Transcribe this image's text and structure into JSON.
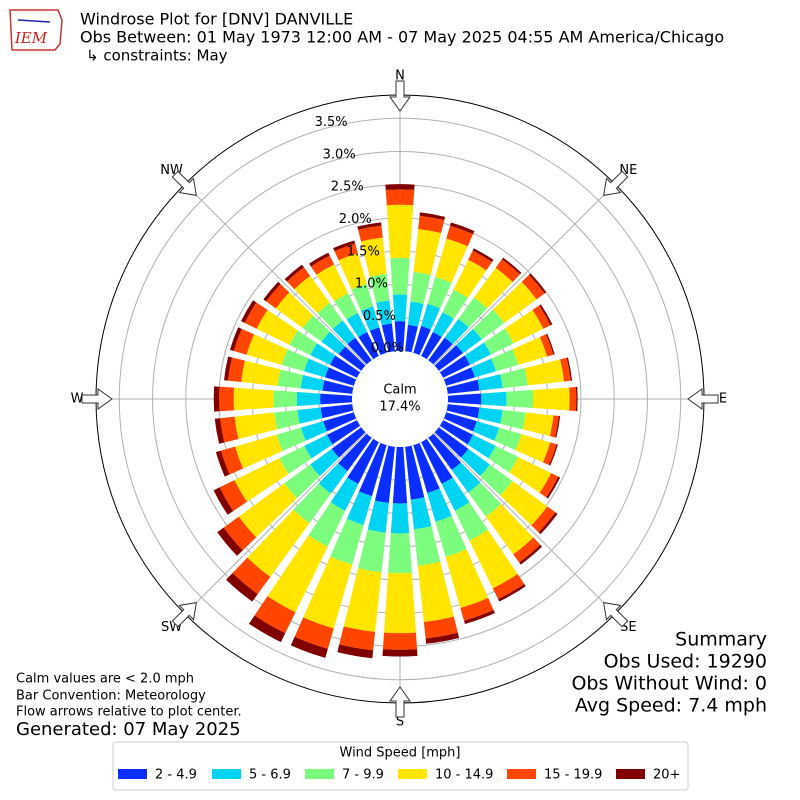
{
  "header": {
    "title": "Windrose Plot for [DNV] DANVILLE",
    "subtitle": "Obs Between: 01 May 1973 12:00 AM - 07 May 2025 04:55 AM America/Chicago",
    "constraints": "↳ constraints: May",
    "logo_text": "IEM"
  },
  "chart_data": {
    "type": "windrose",
    "x": [
      0,
      10,
      20,
      30,
      40,
      50,
      60,
      70,
      80,
      90,
      100,
      110,
      120,
      130,
      140,
      150,
      160,
      170,
      180,
      190,
      200,
      210,
      220,
      230,
      240,
      250,
      260,
      270,
      280,
      290,
      300,
      310,
      320,
      330,
      340,
      350
    ],
    "xticks": [
      {
        "value": 0,
        "label": "N"
      },
      {
        "value": 45,
        "label": "NE"
      },
      {
        "value": 90,
        "label": "E"
      },
      {
        "value": 135,
        "label": "SE"
      },
      {
        "value": 180,
        "label": "S"
      },
      {
        "value": 225,
        "label": "SW"
      },
      {
        "value": 270,
        "label": "W"
      },
      {
        "value": 315,
        "label": "NW"
      }
    ],
    "ylim": [
      0,
      3.85
    ],
    "yticks": [
      {
        "value": 0,
        "label": "0.0%"
      },
      {
        "value": 0.5,
        "label": "0.5%"
      },
      {
        "value": 1,
        "label": "1.0%"
      },
      {
        "value": 1.5,
        "label": "1.5%"
      },
      {
        "value": 2,
        "label": "2.0%"
      },
      {
        "value": 2.5,
        "label": "2.5%"
      },
      {
        "value": 3,
        "label": "3.0%"
      },
      {
        "value": 3.5,
        "label": "3.5%"
      }
    ],
    "grid": true,
    "legend_title": "Wind Speed [mph]",
    "series": [
      {
        "name": "2 - 4.9",
        "color": "#0a2eff",
        "values": [
          0.45,
          0.4,
          0.42,
          0.4,
          0.42,
          0.45,
          0.45,
          0.45,
          0.48,
          0.5,
          0.48,
          0.48,
          0.5,
          0.55,
          0.6,
          0.7,
          0.75,
          0.8,
          0.85,
          0.85,
          0.8,
          0.7,
          0.62,
          0.55,
          0.5,
          0.48,
          0.48,
          0.48,
          0.45,
          0.45,
          0.45,
          0.42,
          0.42,
          0.4,
          0.4,
          0.42
        ]
      },
      {
        "name": "5 - 6.9",
        "color": "#00d4f2",
        "values": [
          0.4,
          0.35,
          0.35,
          0.33,
          0.35,
          0.35,
          0.35,
          0.33,
          0.35,
          0.38,
          0.35,
          0.35,
          0.38,
          0.4,
          0.42,
          0.45,
          0.45,
          0.45,
          0.45,
          0.45,
          0.45,
          0.45,
          0.42,
          0.4,
          0.38,
          0.35,
          0.35,
          0.35,
          0.33,
          0.33,
          0.33,
          0.32,
          0.32,
          0.32,
          0.33,
          0.35
        ]
      },
      {
        "name": "7 - 9.9",
        "color": "#7cfc7c",
        "values": [
          0.55,
          0.45,
          0.42,
          0.38,
          0.4,
          0.42,
          0.38,
          0.35,
          0.38,
          0.4,
          0.35,
          0.35,
          0.38,
          0.42,
          0.45,
          0.5,
          0.55,
          0.55,
          0.6,
          0.6,
          0.62,
          0.6,
          0.55,
          0.48,
          0.42,
          0.38,
          0.35,
          0.35,
          0.35,
          0.35,
          0.35,
          0.35,
          0.33,
          0.33,
          0.35,
          0.4
        ]
      },
      {
        "name": "10 - 14.9",
        "color": "#ffe500",
        "values": [
          0.8,
          0.65,
          0.6,
          0.5,
          0.55,
          0.6,
          0.5,
          0.45,
          0.55,
          0.55,
          0.42,
          0.45,
          0.55,
          0.65,
          0.7,
          0.8,
          0.8,
          0.85,
          0.9,
          0.9,
          1.0,
          1.1,
          1.0,
          0.85,
          0.75,
          0.65,
          0.6,
          0.6,
          0.55,
          0.55,
          0.55,
          0.5,
          0.5,
          0.48,
          0.48,
          0.55
        ]
      },
      {
        "name": "15 - 19.9",
        "color": "#ff4500",
        "values": [
          0.23,
          0.2,
          0.2,
          0.15,
          0.16,
          0.15,
          0.12,
          0.1,
          0.1,
          0.1,
          0.08,
          0.1,
          0.12,
          0.15,
          0.15,
          0.18,
          0.2,
          0.25,
          0.25,
          0.28,
          0.32,
          0.35,
          0.32,
          0.28,
          0.25,
          0.22,
          0.22,
          0.22,
          0.2,
          0.2,
          0.2,
          0.18,
          0.16,
          0.15,
          0.15,
          0.18
        ]
      },
      {
        "name": "20+",
        "color": "#800000",
        "values": [
          0.08,
          0.05,
          0.05,
          0.04,
          0.03,
          0.03,
          0.03,
          0.02,
          0.02,
          0.02,
          0.02,
          0.02,
          0.03,
          0.04,
          0.04,
          0.04,
          0.05,
          0.08,
          0.1,
          0.12,
          0.14,
          0.15,
          0.14,
          0.12,
          0.1,
          0.08,
          0.08,
          0.08,
          0.06,
          0.06,
          0.06,
          0.05,
          0.05,
          0.05,
          0.05,
          0.05
        ]
      }
    ],
    "calm_text": [
      "Calm",
      "17.4%"
    ]
  },
  "notes": [
    "Calm values are < 2.0 mph",
    "Bar Convention: Meteorology",
    "Flow arrows relative to plot center."
  ],
  "generated": "Generated: 07 May 2025",
  "summary": [
    "Summary",
    "Obs Used: 19290",
    "Obs Without Wind: 0",
    "Avg Speed: 7.4 mph"
  ]
}
